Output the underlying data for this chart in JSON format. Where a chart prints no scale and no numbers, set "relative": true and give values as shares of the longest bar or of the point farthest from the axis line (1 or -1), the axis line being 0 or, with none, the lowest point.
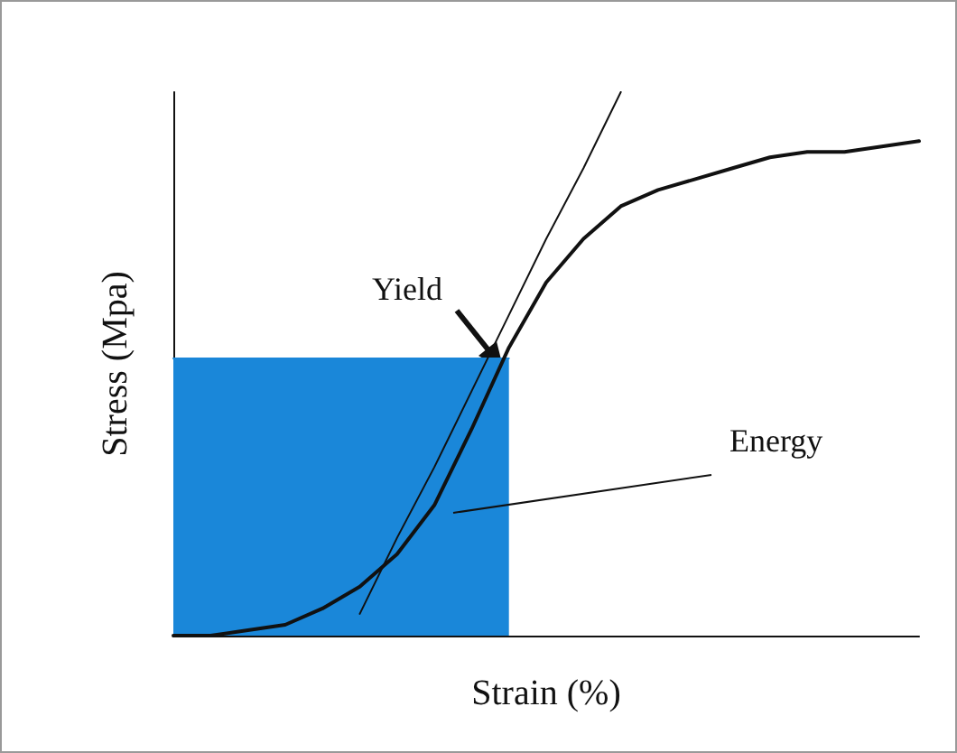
{
  "chart_data": {
    "type": "line",
    "relative": true,
    "xlabel": "Strain (%)",
    "ylabel": "Stress (Mpa)",
    "categories": [
      null,
      null,
      null,
      null,
      null,
      null,
      null,
      null,
      null,
      null,
      null,
      null,
      null,
      null,
      null,
      null,
      null,
      null,
      null,
      null,
      null
    ],
    "series": [
      {
        "type": "area",
        "color": "#1a87d9",
        "values": [
          0.51,
          0.51,
          0.51,
          0.51,
          0.51,
          0.51,
          0.51,
          0.51,
          0.51,
          0.51,
          null,
          null,
          null,
          null,
          null,
          null,
          null,
          null,
          null,
          null,
          null
        ]
      },
      {
        "color": "#111111",
        "values": [
          0,
          0,
          0.01,
          0.02,
          0.05,
          0.09,
          0.15,
          0.24,
          0.38,
          0.53,
          0.65,
          0.73,
          0.79,
          0.82,
          0.84,
          0.86,
          0.88,
          0.89,
          0.89,
          0.9,
          0.91
        ]
      },
      {
        "type": "line",
        "color": "#111111",
        "values": [
          null,
          null,
          null,
          null,
          null,
          0.04,
          0.18,
          0.31,
          0.45,
          0.59,
          0.73,
          0.86,
          1,
          null,
          null,
          null,
          null,
          null,
          null,
          null,
          null
        ]
      }
    ],
    "annotations": [
      "Yield",
      "Energy"
    ],
    "grid": false,
    "marker": "none",
    "line_style": "solid"
  }
}
